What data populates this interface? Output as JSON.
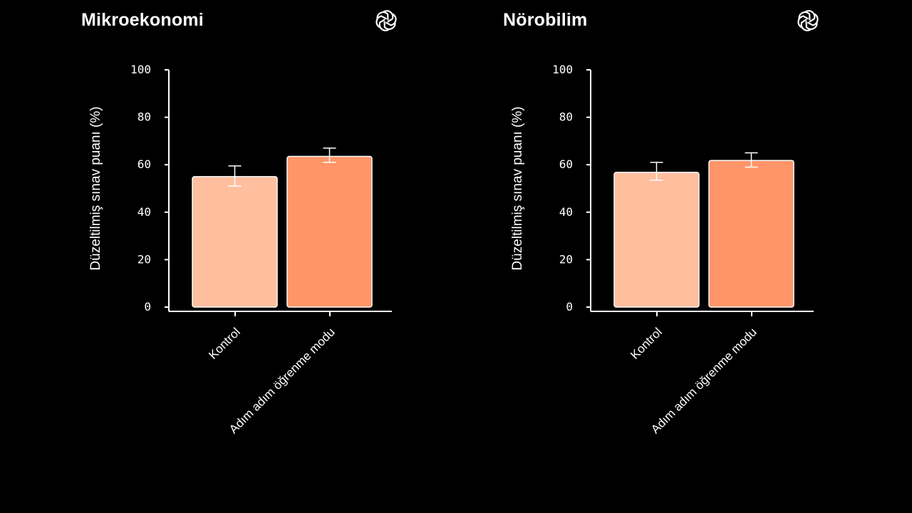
{
  "colors": {
    "background": "#000000",
    "axis": "#ffffff",
    "control_bar": "#FFBE9E",
    "step_bar": "#FF9569",
    "bar_stroke": "#ffffff",
    "error_bar": "#ffffff"
  },
  "brand_icon": "openai-logo-icon",
  "chart_data": [
    {
      "type": "bar",
      "title": "Mikroekonomi",
      "ylabel": "Düzeltilmiş sınav puanı (%)",
      "xlabel": "",
      "ylim": [
        0,
        100
      ],
      "yticks": [
        "0",
        "20",
        "40",
        "60",
        "80",
        "100"
      ],
      "categories": [
        "Kontrol",
        "Adım adım öğrenme modu"
      ],
      "values": [
        55,
        63.5
      ],
      "error_low": [
        51,
        61
      ],
      "error_high": [
        59.5,
        67
      ],
      "colors": [
        "#FFBE9E",
        "#FF9569"
      ],
      "grid": false
    },
    {
      "type": "bar",
      "title": "Nörobilim",
      "ylabel": "Düzeltilmiş sınav puanı (%)",
      "xlabel": "",
      "ylim": [
        0,
        100
      ],
      "yticks": [
        "0",
        "20",
        "40",
        "60",
        "80",
        "100"
      ],
      "categories": [
        "Kontrol",
        "Adım adım öğrenme modu"
      ],
      "values": [
        56.8,
        61.8
      ],
      "error_low": [
        53.5,
        59
      ],
      "error_high": [
        61,
        65
      ],
      "colors": [
        "#FFBE9E",
        "#FF9569"
      ],
      "grid": false
    }
  ]
}
